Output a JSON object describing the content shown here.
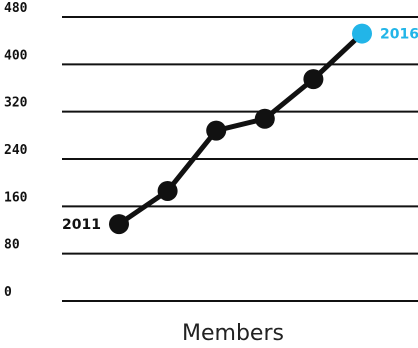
{
  "chart_data": {
    "type": "line",
    "title": "",
    "xlabel": "Members",
    "ylabel": "",
    "ylim": [
      0,
      480
    ],
    "yticks": [
      0,
      80,
      160,
      240,
      320,
      400,
      480
    ],
    "grid": true,
    "x": [
      2011,
      2012,
      2013,
      2014,
      2015,
      2016
    ],
    "series": [
      {
        "values": [
          130,
          186,
          288,
          308,
          375,
          452
        ]
      }
    ],
    "annotations": [
      {
        "text": "2011",
        "x": 2011
      },
      {
        "text": "2016",
        "x": 2016
      }
    ],
    "colors": {
      "line": "#111111",
      "point": "#111111",
      "highlight": "#22b5e8",
      "grid": "#111111"
    }
  }
}
